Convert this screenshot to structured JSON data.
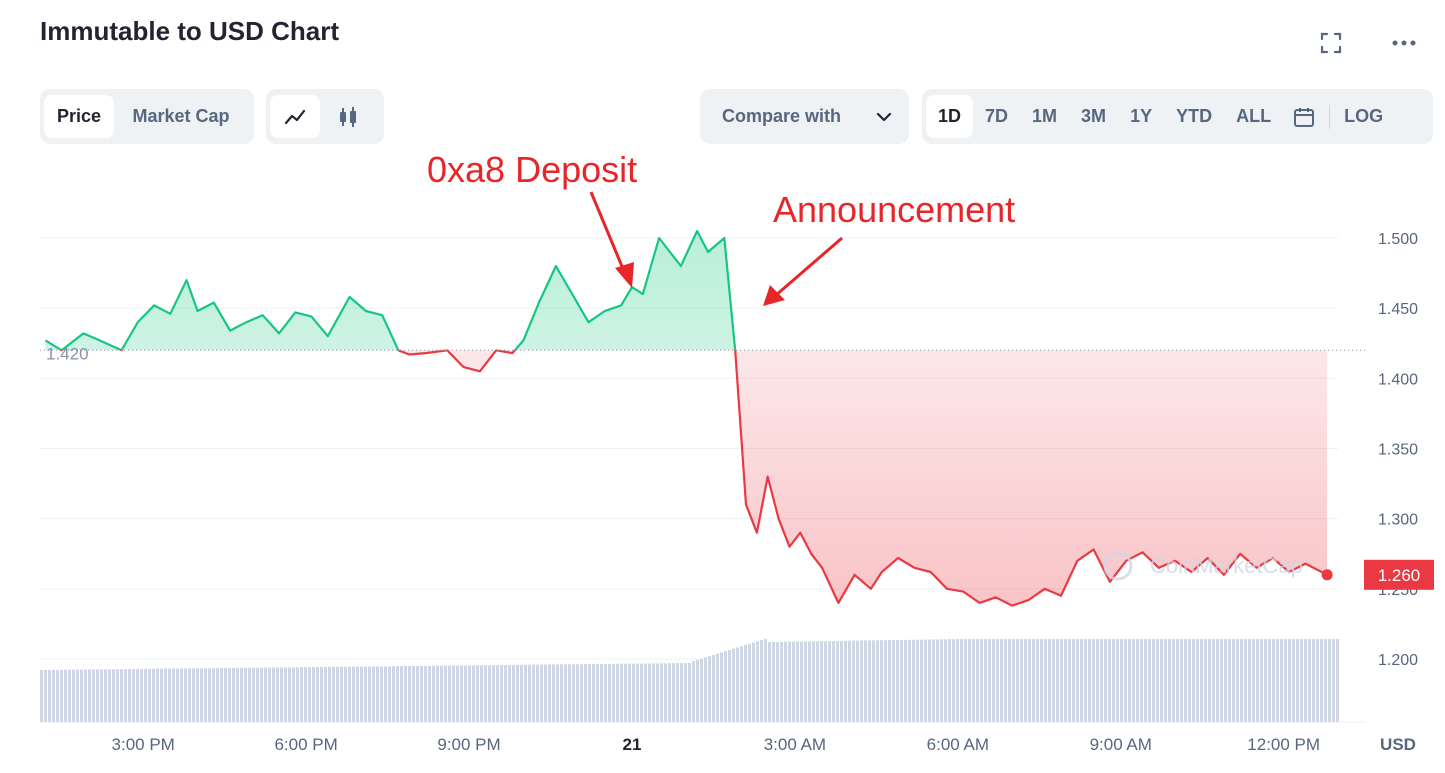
{
  "header": {
    "title": "Immutable to USD Chart"
  },
  "toolbar": {
    "metric_tabs": [
      "Price",
      "Market Cap"
    ],
    "active_metric": "Price",
    "compare_label": "Compare with",
    "ranges": [
      "1D",
      "7D",
      "1M",
      "3M",
      "1Y",
      "YTD",
      "ALL"
    ],
    "active_range": "1D",
    "log_label": "LOG"
  },
  "annotations": {
    "deposit": "0xa8 Deposit",
    "announcement": "Announcement"
  },
  "chart_data": {
    "type": "line",
    "title": "Immutable to USD Chart",
    "xlabel": "",
    "ylabel": "",
    "currency_label": "USD",
    "ylim": [
      1.16,
      1.52
    ],
    "y_ticks": [
      1.2,
      1.25,
      1.3,
      1.35,
      1.4,
      1.45,
      1.5
    ],
    "y_tick_labels": [
      "1.200",
      "1.250",
      "1.300",
      "1.350",
      "1.400",
      "1.450",
      "1.500"
    ],
    "x_tick_labels": [
      "3:00 PM",
      "6:00 PM",
      "9:00 PM",
      "21",
      "3:00 AM",
      "6:00 AM",
      "9:00 AM",
      "12:00 PM"
    ],
    "x_ticks_hours": [
      15,
      18,
      21,
      24,
      27,
      30,
      33,
      36
    ],
    "xlim_hours": [
      13.1,
      37.0
    ],
    "baseline": 1.42,
    "baseline_label": "1.420",
    "last_price": 1.26,
    "last_price_label": "1.260",
    "colors": {
      "up": "#16c784",
      "down": "#ea3943",
      "annotation": "#e8262a",
      "volume": "#cfd6e4"
    },
    "series": [
      {
        "x_hours": [
          13.2,
          13.5,
          13.9,
          14.2,
          14.6,
          14.9,
          15.2,
          15.5,
          15.8,
          16.0,
          16.3,
          16.6,
          16.9,
          17.2,
          17.5,
          17.8,
          18.1,
          18.4,
          18.8,
          19.1,
          19.4,
          19.7,
          19.9,
          20.2,
          20.6,
          20.9,
          21.2,
          21.5,
          21.8,
          22.0,
          22.3,
          22.6,
          22.9,
          23.2,
          23.5,
          23.8,
          24.0,
          24.2,
          24.5,
          24.9,
          25.2,
          25.4,
          25.7,
          25.9,
          26.1,
          26.3,
          26.5,
          26.7,
          26.9,
          27.1,
          27.3,
          27.5,
          27.8,
          28.1,
          28.4,
          28.6,
          28.9,
          29.2,
          29.5,
          29.8,
          30.1,
          30.4,
          30.7,
          31.0,
          31.3,
          31.6,
          31.9,
          32.2,
          32.5,
          32.8,
          33.1,
          33.4,
          33.7,
          34.0,
          34.3,
          34.6,
          34.9,
          35.2,
          35.5,
          35.8,
          36.1,
          36.4,
          36.8
        ],
        "values": [
          1.427,
          1.42,
          1.432,
          1.427,
          1.42,
          1.44,
          1.452,
          1.446,
          1.47,
          1.448,
          1.454,
          1.434,
          1.44,
          1.445,
          1.432,
          1.447,
          1.444,
          1.43,
          1.458,
          1.448,
          1.445,
          1.42,
          1.417,
          1.418,
          1.42,
          1.408,
          1.405,
          1.42,
          1.418,
          1.427,
          1.455,
          1.48,
          1.46,
          1.44,
          1.448,
          1.452,
          1.465,
          1.46,
          1.5,
          1.48,
          1.505,
          1.49,
          1.5,
          1.42,
          1.31,
          1.29,
          1.33,
          1.3,
          1.28,
          1.29,
          1.275,
          1.265,
          1.24,
          1.26,
          1.25,
          1.262,
          1.272,
          1.265,
          1.262,
          1.25,
          1.248,
          1.24,
          1.244,
          1.238,
          1.242,
          1.25,
          1.245,
          1.27,
          1.278,
          1.255,
          1.27,
          1.276,
          1.265,
          1.27,
          1.262,
          1.272,
          1.26,
          1.275,
          1.265,
          1.272,
          1.262,
          1.268,
          1.26
        ]
      }
    ],
    "watermark": "CoinMarketCap"
  }
}
